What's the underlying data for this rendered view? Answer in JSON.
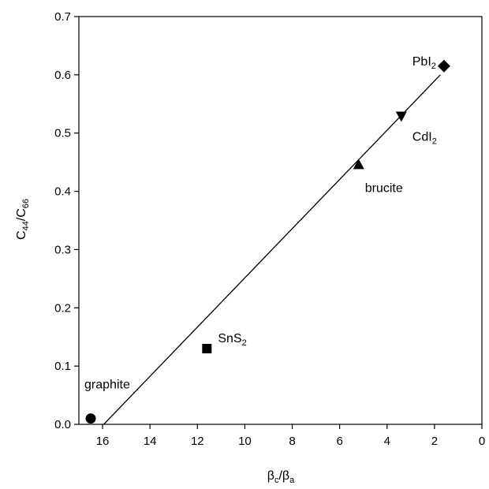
{
  "chart_data": {
    "type": "scatter",
    "title": "",
    "xlabel": {
      "main": "β",
      "sub1": "c",
      "mid": "/β",
      "sub2": "a"
    },
    "ylabel": {
      "main": "C",
      "sub1": "44",
      "mid": "/C",
      "sub2": "66"
    },
    "xlim": [
      17,
      0
    ],
    "ylim": [
      0,
      0.7
    ],
    "x_reversed": true,
    "x_ticks": [
      16,
      14,
      12,
      10,
      8,
      6,
      4,
      2,
      0
    ],
    "y_ticks": [
      0.0,
      0.1,
      0.2,
      0.3,
      0.4,
      0.5,
      0.6,
      0.7
    ],
    "y_tick_labels": [
      "0.0",
      "0.1",
      "0.2",
      "0.3",
      "0.4",
      "0.5",
      "0.6",
      "0.7"
    ],
    "grid": false,
    "points": [
      {
        "name": "graphite",
        "x": 16.5,
        "y": 0.01,
        "marker": "circle",
        "label": {
          "main": "graphite",
          "sub": ""
        }
      },
      {
        "name": "SnS2",
        "x": 11.6,
        "y": 0.13,
        "marker": "square",
        "label": {
          "main": "SnS",
          "sub": "2"
        }
      },
      {
        "name": "brucite",
        "x": 5.2,
        "y": 0.445,
        "marker": "triangle-up",
        "label": {
          "main": "brucite",
          "sub": ""
        }
      },
      {
        "name": "CdI2",
        "x": 3.4,
        "y": 0.53,
        "marker": "triangle-down",
        "label": {
          "main": "CdI",
          "sub": "2"
        }
      },
      {
        "name": "PbI2",
        "x": 1.6,
        "y": 0.615,
        "marker": "diamond",
        "label": {
          "main": "PbI",
          "sub": "2"
        }
      }
    ],
    "fit_line": {
      "x": [
        15.95,
        1.75
      ],
      "y": [
        0.0,
        0.6
      ]
    }
  }
}
